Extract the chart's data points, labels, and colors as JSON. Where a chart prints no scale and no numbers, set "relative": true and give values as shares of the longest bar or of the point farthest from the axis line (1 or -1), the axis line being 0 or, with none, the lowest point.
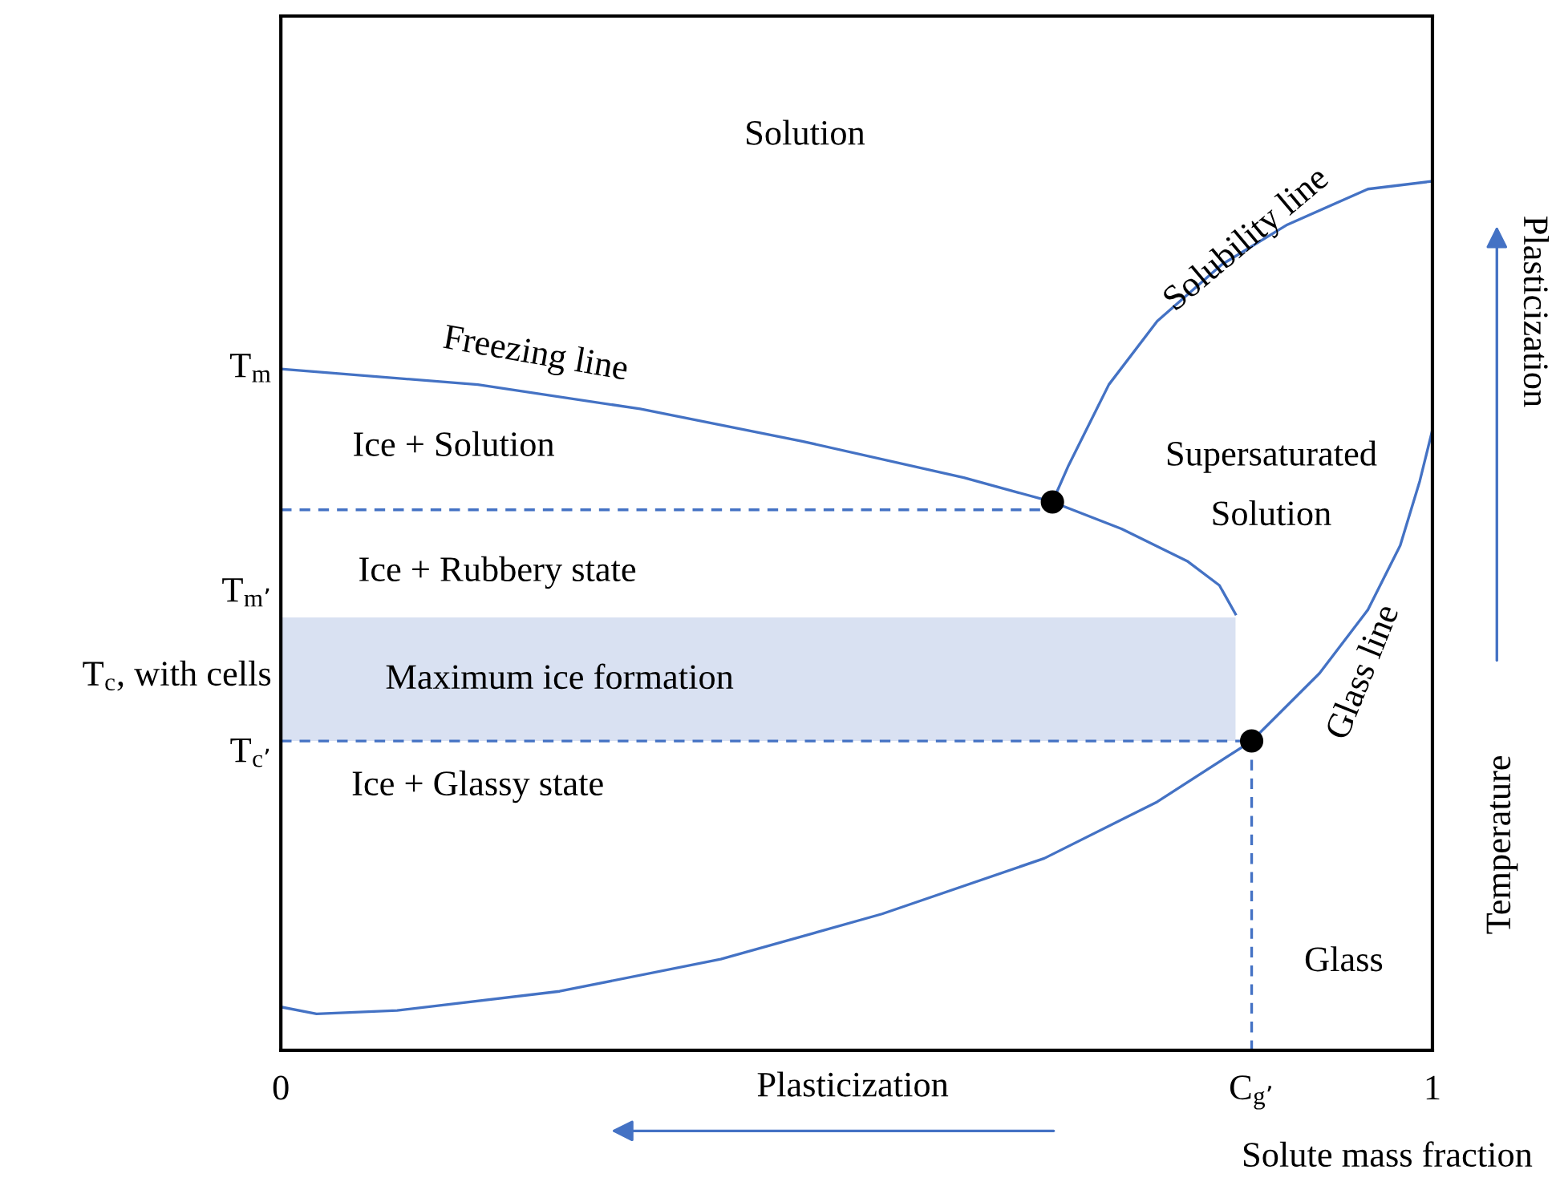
{
  "chart_data": {
    "type": "line",
    "relative": true,
    "xlim": [
      0,
      1
    ],
    "xticks": [
      0,
      {
        "value": 0.843,
        "label": "C$_{g’}$"
      },
      1
    ],
    "xlabel": "Solute mass fraction",
    "ylabel": "Temperature",
    "grid": false,
    "bands": [
      {
        "axis": "y",
        "from": 0.356,
        "to": 0.498,
        "color": "#d9e1f2"
      }
    ],
    "series": [
      {
        "color": "#4472c4",
        "line_style": "solid",
        "x": [
          0,
          0.171,
          0.312,
          0.452,
          0.593,
          0.67,
          0.73,
          0.787,
          0.815,
          0.829
        ],
        "values": [
          0.784,
          0.766,
          0.738,
          0.701,
          0.659,
          0.631,
          0.6,
          0.563,
          0.535,
          0.502
        ]
      },
      {
        "color": "#4472c4",
        "line_style": "solid",
        "x": [
          0.67,
          0.684,
          0.719,
          0.761,
          0.817,
          0.874,
          0.944,
          1
        ],
        "values": [
          0.631,
          0.673,
          0.766,
          0.839,
          0.904,
          0.95,
          0.991,
          1
        ]
      },
      {
        "color": "#4472c4",
        "line_style": "solid",
        "x": [
          0,
          0.031,
          0.101,
          0.242,
          0.382,
          0.522,
          0.663,
          0.761,
          0.843,
          0.902,
          0.944,
          0.972,
          0.989,
          1
        ],
        "values": [
          0.05,
          0.042,
          0.046,
          0.068,
          0.105,
          0.157,
          0.221,
          0.286,
          0.356,
          0.434,
          0.507,
          0.581,
          0.655,
          0.714
        ]
      },
      {
        "color": "#4472c4",
        "line_style": "dashed",
        "x": [
          0,
          0.67
        ],
        "values": [
          0.622,
          0.622
        ]
      },
      {
        "color": "#4472c4",
        "line_style": "dashed",
        "x": [
          0,
          0.843
        ],
        "values": [
          0.356,
          0.356
        ]
      },
      {
        "color": "#4472c4",
        "line_style": "dashed",
        "x": [
          0.843,
          0.843
        ],
        "values": [
          0.356,
          0
        ]
      },
      {
        "type": "scatter",
        "color": "#000000",
        "marker": "circle",
        "x": [
          0.67,
          0.843
        ],
        "values": [
          0.631,
          0.356
        ]
      }
    ],
    "annotations": [
      "Solution",
      "Freezing line",
      "Solubility line",
      "Ice + Solution",
      "Supersaturated\n\nSolution",
      "Ice + Rubbery state",
      "Maximum ice formation",
      "Ice + Glassy state",
      "Glass line",
      "Glass",
      "Plasticization",
      "Plasticization",
      "T$_{m}$",
      "T$_{m’}$",
      "T$_{c}$, with cells",
      "T$_{c’}$"
    ]
  }
}
